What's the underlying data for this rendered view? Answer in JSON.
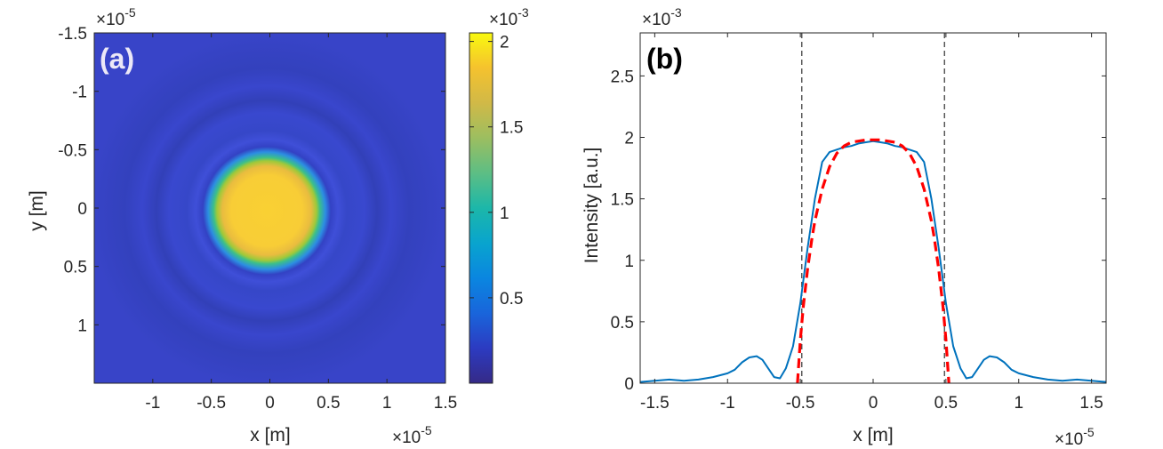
{
  "chart_data": [
    {
      "type": "heatmap",
      "panel_label": "(a)",
      "xlabel": "x [m]",
      "ylabel": "y [m]",
      "x_exponent": "×10",
      "x_exponent_power": "-5",
      "y_exponent": "×10",
      "y_exponent_power": "-5",
      "xlim": [
        -1.5,
        1.5
      ],
      "ylim": [
        -1.5,
        1.5
      ],
      "y_reversed": true,
      "x_ticks": [
        "-1",
        "-0.5",
        "0",
        "0.5",
        "1",
        "1.5"
      ],
      "y_ticks": [
        "-1.5",
        "-1",
        "-0.5",
        "0",
        "0.5",
        "1"
      ],
      "x_tick_values": [
        -1,
        -0.5,
        0,
        0.5,
        1,
        1.5
      ],
      "y_tick_values": [
        -1.5,
        -1,
        -0.5,
        0,
        0.5,
        1
      ],
      "colormap": "parula",
      "colorbar": {
        "exponent": "×10",
        "exponent_power": "-3",
        "range": [
          0,
          2.05
        ],
        "ticks": [
          "0.5",
          "1",
          "1.5",
          "2"
        ],
        "tick_values": [
          0.5,
          1,
          1.5,
          2
        ]
      },
      "description_values": {
        "central_disk_radius": 0.5,
        "central_peak_value": 2.0,
        "ring_radii": [
          0.8,
          1.2
        ],
        "ring_values": [
          0.22,
          0.06
        ],
        "background_value": 0.02
      }
    },
    {
      "type": "line",
      "panel_label": "(b)",
      "xlabel": "x [m]",
      "ylabel": "Intensity [a.u.]",
      "x_exponent": "×10",
      "x_exponent_power": "-5",
      "y_exponent": "×10",
      "y_exponent_power": "-3",
      "xlim": [
        -1.6,
        1.6
      ],
      "ylim": [
        0,
        2.85
      ],
      "x_ticks": [
        "-1.5",
        "-1",
        "-0.5",
        "0",
        "0.5",
        "1",
        "1.5"
      ],
      "x_tick_values": [
        -1.5,
        -1,
        -0.5,
        0,
        0.5,
        1,
        1.5
      ],
      "y_ticks": [
        "0",
        "0.5",
        "1",
        "1.5",
        "2",
        "2.5"
      ],
      "y_tick_values": [
        0,
        0.5,
        1,
        1.5,
        2,
        2.5
      ],
      "vertical_lines": [
        -0.49,
        0.49
      ],
      "series": [
        {
          "style": "solid",
          "color": "#0072BD",
          "x": [
            -1.6,
            -1.5,
            -1.4,
            -1.3,
            -1.2,
            -1.1,
            -1.0,
            -0.95,
            -0.9,
            -0.85,
            -0.8,
            -0.76,
            -0.72,
            -0.68,
            -0.64,
            -0.6,
            -0.55,
            -0.5,
            -0.45,
            -0.4,
            -0.35,
            -0.3,
            -0.25,
            -0.2,
            -0.15,
            -0.1,
            -0.05,
            0.0,
            0.05,
            0.1,
            0.15,
            0.2,
            0.25,
            0.3,
            0.35,
            0.4,
            0.45,
            0.5,
            0.55,
            0.6,
            0.64,
            0.68,
            0.72,
            0.76,
            0.8,
            0.85,
            0.9,
            0.95,
            1.0,
            1.1,
            1.2,
            1.3,
            1.4,
            1.5,
            1.6
          ],
          "y": [
            0.01,
            0.02,
            0.03,
            0.02,
            0.03,
            0.05,
            0.08,
            0.11,
            0.17,
            0.21,
            0.22,
            0.19,
            0.12,
            0.05,
            0.04,
            0.12,
            0.3,
            0.65,
            1.1,
            1.5,
            1.8,
            1.88,
            1.9,
            1.92,
            1.93,
            1.95,
            1.96,
            1.97,
            1.96,
            1.95,
            1.93,
            1.92,
            1.9,
            1.88,
            1.8,
            1.5,
            1.1,
            0.65,
            0.3,
            0.12,
            0.04,
            0.05,
            0.12,
            0.19,
            0.22,
            0.21,
            0.17,
            0.11,
            0.08,
            0.05,
            0.03,
            0.02,
            0.03,
            0.02,
            0.01
          ]
        },
        {
          "style": "dashed",
          "color": "#FF0000",
          "x": [
            -0.52,
            -0.5,
            -0.48,
            -0.45,
            -0.42,
            -0.4,
            -0.35,
            -0.3,
            -0.25,
            -0.2,
            -0.15,
            -0.1,
            -0.05,
            0.0,
            0.05,
            0.1,
            0.15,
            0.2,
            0.25,
            0.3,
            0.35,
            0.4,
            0.42,
            0.45,
            0.48,
            0.5,
            0.52
          ],
          "y": [
            0.0,
            0.35,
            0.62,
            0.93,
            1.18,
            1.32,
            1.58,
            1.76,
            1.87,
            1.93,
            1.96,
            1.97,
            1.98,
            1.98,
            1.98,
            1.97,
            1.96,
            1.93,
            1.87,
            1.76,
            1.58,
            1.32,
            1.18,
            0.93,
            0.62,
            0.35,
            0.0
          ]
        }
      ]
    }
  ]
}
